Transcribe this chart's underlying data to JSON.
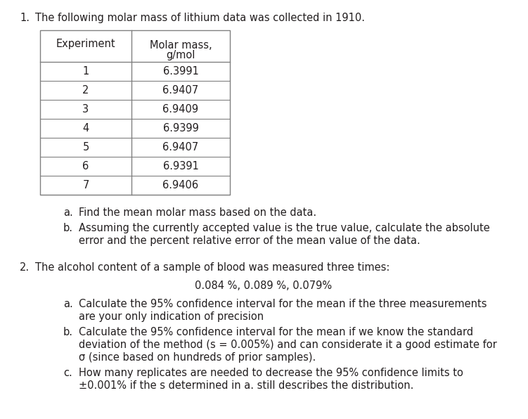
{
  "title1_num": "1.",
  "title1_text": "The following molar mass of lithium data was collected in 1910.",
  "table_header_col1": "Experiment",
  "table_header_col2": "Molar mass,\ng/mol",
  "table_rows": [
    [
      "1",
      "6.3991"
    ],
    [
      "2",
      "6.9407"
    ],
    [
      "3",
      "6.9409"
    ],
    [
      "4",
      "6.9399"
    ],
    [
      "5",
      "6.9407"
    ],
    [
      "6",
      "6.9391"
    ],
    [
      "7",
      "6.9406"
    ]
  ],
  "q1_items": [
    "a.\tFind the mean molar mass based on the data.",
    "b.\tAssuming the currently accepted value is the true value, calculate the absolute\n\terror and the percent relative error of the mean value of the data."
  ],
  "title2_num": "2.",
  "title2_text": "The alcohol content of a sample of blood was measured three times:",
  "blood_values": "0.084 %, 0.089 %, 0.079%",
  "q2_items": [
    "a.\tCalculate the 95% confidence interval for the mean if the three measurements\n\tare your only indication of precision",
    "b.\tCalculate the 95% confidence interval for the mean if we know the standard\n\tdeviation of the method (s = 0.005%) and can considerate it a good estimate for\n\tσ (since based on hundreds of prior samples).",
    "c.\tHow many replicates are needed to decrease the 95% confidence limits to\n\t±0.001% if the s determined in a. still describes the distribution."
  ],
  "bg_color": "#ffffff",
  "text_color": "#231F20",
  "table_line_color": "#808080",
  "font_size": 10.5,
  "small_font_size": 10.5
}
